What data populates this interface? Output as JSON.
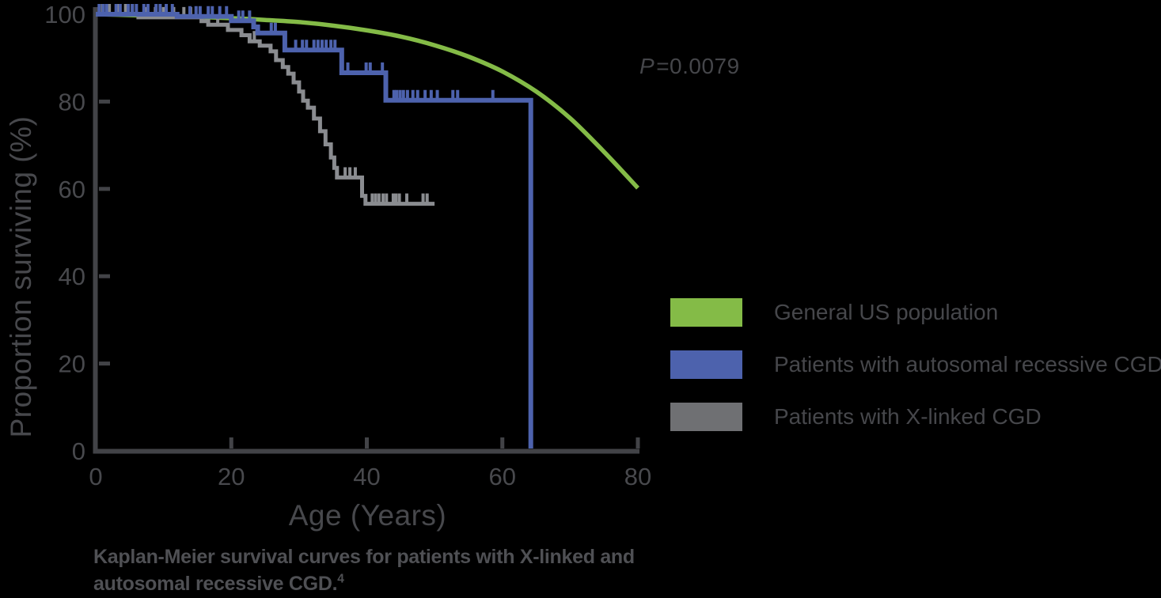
{
  "page": {
    "background_color": "#000000"
  },
  "caption": {
    "line1": "Kaplan-Meier survival curves for patients with X-linked and",
    "line2": "autosomal recessive CGD.",
    "superscript": "4"
  },
  "chart_data": {
    "type": "line",
    "variant": "kaplan-meier-survival",
    "title": "",
    "xlabel": "Age (Years)",
    "ylabel": "Proportion surviving (%)",
    "xlim": [
      0,
      80
    ],
    "ylim": [
      0,
      100
    ],
    "xticks": [
      0,
      20,
      40,
      60,
      80
    ],
    "yticks": [
      0,
      20,
      40,
      60,
      80,
      100
    ],
    "grid": false,
    "legend_position": "right-outside",
    "axis_color": "#424347",
    "tick_label_color": "#48494D",
    "annotation": {
      "text": "P=0.0079",
      "italic_part": "P",
      "rest": "=0.0079",
      "x": 80,
      "y": 87
    },
    "series": [
      {
        "id": "general-us-population",
        "name": "General US population",
        "color": "#84BB47",
        "swatch_color": "#84BB47",
        "line": "smooth",
        "x": [
          0,
          5,
          10,
          15,
          20,
          25,
          30,
          35,
          40,
          45,
          50,
          55,
          60,
          65,
          70,
          75,
          80
        ],
        "y": [
          100,
          99.8,
          99.6,
          99.4,
          99.1,
          98.7,
          98.2,
          97.4,
          96.3,
          94.9,
          92.9,
          90.3,
          86.9,
          82.3,
          76.2,
          68.5,
          60.2
        ]
      },
      {
        "id": "autosomal-recessive-cgd",
        "name": "Patients with autosomal recessive CGD",
        "color": "#4D62AD",
        "swatch_color": "#4D62AD",
        "line": "step",
        "levels": [
          [
            0,
            100
          ],
          [
            12,
            99.5
          ],
          [
            20,
            98.5
          ],
          [
            23.3,
            97.1
          ],
          [
            23.9,
            95.7
          ],
          [
            27.9,
            91.8
          ],
          [
            36.3,
            86.6
          ],
          [
            42.8,
            80.3
          ]
        ],
        "end_x": 64.2,
        "drop_to_zero": true,
        "censors": [
          [
            0.5,
            100
          ],
          [
            1.1,
            100
          ],
          [
            1.6,
            100
          ],
          [
            3,
            100
          ],
          [
            3.6,
            100
          ],
          [
            4.8,
            100
          ],
          [
            5.4,
            100
          ],
          [
            6,
            100
          ],
          [
            7.1,
            100
          ],
          [
            7.7,
            100
          ],
          [
            8.9,
            100
          ],
          [
            9.5,
            100
          ],
          [
            10.4,
            100
          ],
          [
            11.3,
            100
          ],
          [
            13.9,
            99.5
          ],
          [
            14.8,
            99.5
          ],
          [
            15.4,
            99.5
          ],
          [
            16.6,
            99.5
          ],
          [
            17.2,
            99.5
          ],
          [
            18.3,
            99.5
          ],
          [
            19.3,
            99.5
          ],
          [
            21.1,
            98.5
          ],
          [
            21.7,
            98.5
          ],
          [
            22.7,
            98.5
          ],
          [
            25.9,
            95.7
          ],
          [
            26.5,
            95.7
          ],
          [
            29.5,
            91.8
          ],
          [
            30.5,
            91.8
          ],
          [
            31.1,
            91.8
          ],
          [
            32.2,
            91.8
          ],
          [
            32.8,
            91.8
          ],
          [
            33.4,
            91.8
          ],
          [
            34,
            91.8
          ],
          [
            34.7,
            91.8
          ],
          [
            35.3,
            91.8
          ],
          [
            37.2,
            86.6
          ],
          [
            39.9,
            86.6
          ],
          [
            40.5,
            86.6
          ],
          [
            42.3,
            86.6
          ],
          [
            44,
            80.3
          ],
          [
            44.4,
            80.3
          ],
          [
            44.9,
            80.3
          ],
          [
            45.4,
            80.3
          ],
          [
            46,
            80.3
          ],
          [
            46.8,
            80.3
          ],
          [
            47.5,
            80.3
          ],
          [
            48.6,
            80.3
          ],
          [
            49.5,
            80.3
          ],
          [
            50.4,
            80.3
          ],
          [
            52.7,
            80.3
          ],
          [
            53.4,
            80.3
          ],
          [
            58.6,
            80.3
          ]
        ]
      },
      {
        "id": "x-linked-cgd",
        "name": "Patients with X-linked CGD",
        "color": "#8A8C90",
        "swatch_color": "#6F7073",
        "line": "step",
        "levels": [
          [
            0,
            100
          ],
          [
            6.3,
            99.3
          ],
          [
            15.6,
            98.4
          ],
          [
            16.6,
            97.6
          ],
          [
            19.5,
            96.4
          ],
          [
            21.5,
            95.2
          ],
          [
            22.7,
            93.8
          ],
          [
            24.2,
            92.8
          ],
          [
            25.8,
            91.5
          ],
          [
            26.6,
            89.5
          ],
          [
            27.6,
            87.9
          ],
          [
            28.4,
            86.4
          ],
          [
            29.2,
            84.4
          ],
          [
            30,
            82.3
          ],
          [
            30.6,
            80.2
          ],
          [
            31.3,
            78.6
          ],
          [
            32.2,
            76.1
          ],
          [
            33.1,
            73.2
          ],
          [
            33.9,
            70.2
          ],
          [
            34.7,
            67.2
          ],
          [
            35.2,
            64.8
          ],
          [
            35.6,
            62.6
          ],
          [
            39.3,
            58.4
          ],
          [
            39.8,
            56.6
          ]
        ],
        "end_x": 50,
        "drop_to_zero": false,
        "censors": [
          [
            1,
            100
          ],
          [
            2,
            100
          ],
          [
            3.2,
            100
          ],
          [
            4.4,
            100
          ],
          [
            5.4,
            100
          ],
          [
            7.5,
            99.3
          ],
          [
            8.8,
            99.3
          ],
          [
            10,
            99.3
          ],
          [
            11.5,
            99.3
          ],
          [
            13,
            99.3
          ],
          [
            14,
            99.3
          ],
          [
            18,
            97.6
          ],
          [
            23.4,
            93.8
          ],
          [
            36.8,
            62.6
          ],
          [
            37.5,
            62.6
          ],
          [
            38.3,
            62.6
          ],
          [
            40.8,
            56.6
          ],
          [
            41.3,
            56.6
          ],
          [
            41.8,
            56.6
          ],
          [
            42.4,
            56.6
          ],
          [
            42.9,
            56.6
          ],
          [
            43.9,
            56.6
          ],
          [
            44.3,
            56.6
          ],
          [
            44.8,
            56.6
          ],
          [
            45.9,
            56.6
          ],
          [
            48.3,
            56.6
          ],
          [
            48.9,
            56.6
          ]
        ]
      }
    ]
  }
}
